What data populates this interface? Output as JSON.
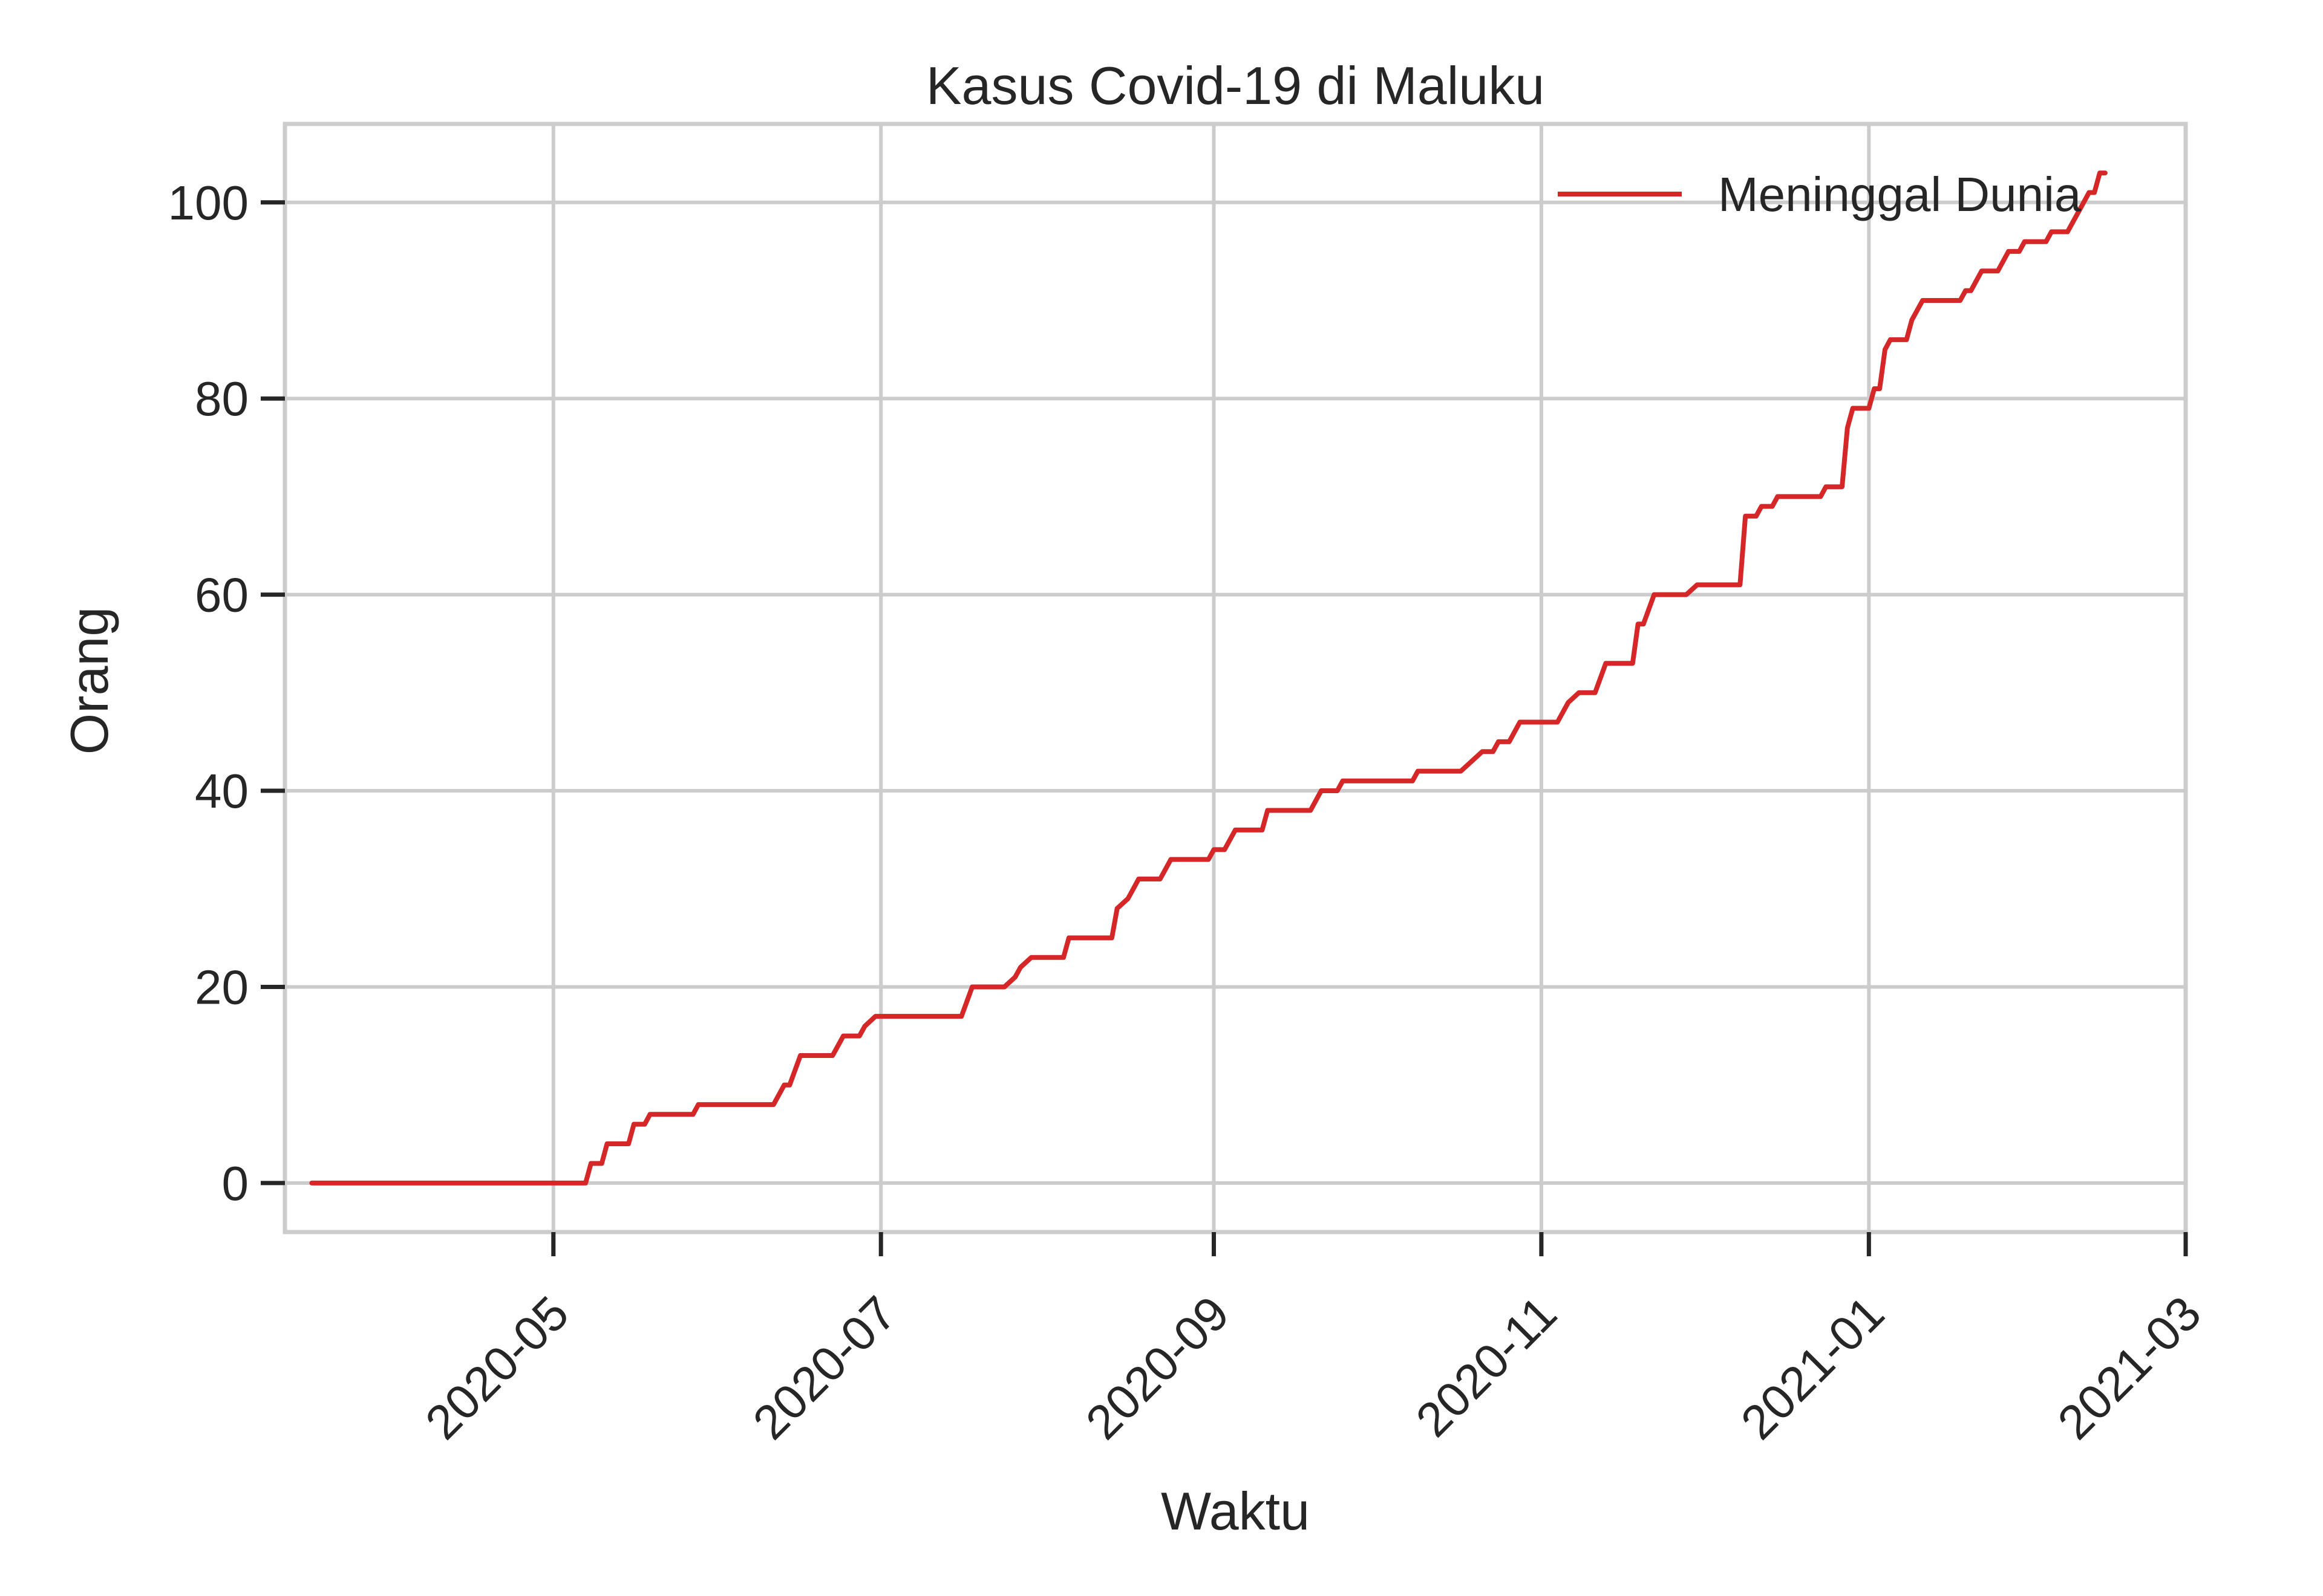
{
  "chart_data": {
    "type": "line",
    "title": "Kasus Covid-19 di Maluku",
    "xlabel": "Waktu",
    "ylabel": "Orang",
    "x_tick_labels": [
      "2020-05",
      "2020-07",
      "2020-09",
      "2020-11",
      "2021-01",
      "2021-03"
    ],
    "x_tick_dates": [
      "2020-05-01",
      "2020-07-01",
      "2020-09-01",
      "2020-11-01",
      "2021-01-01",
      "2021-03-01"
    ],
    "xlim": [
      "2020-03-12",
      "2021-03-01"
    ],
    "y_ticks": [
      0,
      20,
      40,
      60,
      80,
      100
    ],
    "y_tick_labels": [
      "0",
      "20",
      "40",
      "60",
      "80",
      "100"
    ],
    "ylim": [
      -5,
      108
    ],
    "grid": true,
    "legend_position": "top-right",
    "series": [
      {
        "name": "Meninggal Dunia",
        "color": "#d62728",
        "points": [
          [
            "2020-03-17",
            0
          ],
          [
            "2020-05-07",
            0
          ],
          [
            "2020-05-08",
            2
          ],
          [
            "2020-05-10",
            2
          ],
          [
            "2020-05-11",
            4
          ],
          [
            "2020-05-15",
            4
          ],
          [
            "2020-05-16",
            6
          ],
          [
            "2020-05-18",
            6
          ],
          [
            "2020-05-19",
            7
          ],
          [
            "2020-05-27",
            7
          ],
          [
            "2020-05-28",
            8
          ],
          [
            "2020-06-11",
            8
          ],
          [
            "2020-06-13",
            10
          ],
          [
            "2020-06-14",
            10
          ],
          [
            "2020-06-16",
            13
          ],
          [
            "2020-06-22",
            13
          ],
          [
            "2020-06-23",
            14
          ],
          [
            "2020-06-24",
            15
          ],
          [
            "2020-06-27",
            15
          ],
          [
            "2020-06-28",
            16
          ],
          [
            "2020-06-30",
            17
          ],
          [
            "2020-07-16",
            17
          ],
          [
            "2020-07-18",
            20
          ],
          [
            "2020-07-24",
            20
          ],
          [
            "2020-07-26",
            21
          ],
          [
            "2020-07-27",
            22
          ],
          [
            "2020-07-29",
            23
          ],
          [
            "2020-08-04",
            23
          ],
          [
            "2020-08-05",
            25
          ],
          [
            "2020-08-13",
            25
          ],
          [
            "2020-08-14",
            28
          ],
          [
            "2020-08-16",
            29
          ],
          [
            "2020-08-17",
            30
          ],
          [
            "2020-08-18",
            31
          ],
          [
            "2020-08-22",
            31
          ],
          [
            "2020-08-24",
            33
          ],
          [
            "2020-08-31",
            33
          ],
          [
            "2020-09-01",
            34
          ],
          [
            "2020-09-03",
            34
          ],
          [
            "2020-09-05",
            36
          ],
          [
            "2020-09-10",
            36
          ],
          [
            "2020-09-11",
            38
          ],
          [
            "2020-09-19",
            38
          ],
          [
            "2020-09-21",
            40
          ],
          [
            "2020-09-24",
            40
          ],
          [
            "2020-09-25",
            41
          ],
          [
            "2020-10-08",
            41
          ],
          [
            "2020-10-09",
            42
          ],
          [
            "2020-10-17",
            42
          ],
          [
            "2020-10-19",
            43
          ],
          [
            "2020-10-21",
            44
          ],
          [
            "2020-10-23",
            44
          ],
          [
            "2020-10-24",
            45
          ],
          [
            "2020-10-26",
            45
          ],
          [
            "2020-10-28",
            47
          ],
          [
            "2020-11-04",
            47
          ],
          [
            "2020-11-06",
            49
          ],
          [
            "2020-11-08",
            50
          ],
          [
            "2020-11-11",
            50
          ],
          [
            "2020-11-13",
            53
          ],
          [
            "2020-11-18",
            53
          ],
          [
            "2020-11-19",
            57
          ],
          [
            "2020-11-20",
            57
          ],
          [
            "2020-11-22",
            60
          ],
          [
            "2020-11-28",
            60
          ],
          [
            "2020-11-30",
            61
          ],
          [
            "2020-12-08",
            61
          ],
          [
            "2020-12-09",
            68
          ],
          [
            "2020-12-11",
            68
          ],
          [
            "2020-12-12",
            69
          ],
          [
            "2020-12-14",
            69
          ],
          [
            "2020-12-15",
            70
          ],
          [
            "2020-12-23",
            70
          ],
          [
            "2020-12-24",
            71
          ],
          [
            "2020-12-27",
            71
          ],
          [
            "2020-12-28",
            77
          ],
          [
            "2020-12-29",
            79
          ],
          [
            "2021-01-01",
            79
          ],
          [
            "2021-01-02",
            81
          ],
          [
            "2021-01-03",
            81
          ],
          [
            "2021-01-04",
            85
          ],
          [
            "2021-01-05",
            86
          ],
          [
            "2021-01-08",
            86
          ],
          [
            "2021-01-09",
            88
          ],
          [
            "2021-01-11",
            90
          ],
          [
            "2021-01-18",
            90
          ],
          [
            "2021-01-19",
            91
          ],
          [
            "2021-01-20",
            91
          ],
          [
            "2021-01-22",
            93
          ],
          [
            "2021-01-25",
            93
          ],
          [
            "2021-01-27",
            95
          ],
          [
            "2021-01-29",
            95
          ],
          [
            "2021-01-30",
            96
          ],
          [
            "2021-02-03",
            96
          ],
          [
            "2021-02-04",
            97
          ],
          [
            "2021-02-07",
            97
          ],
          [
            "2021-02-08",
            98
          ],
          [
            "2021-02-10",
            100
          ],
          [
            "2021-02-11",
            101
          ],
          [
            "2021-02-12",
            101
          ],
          [
            "2021-02-13",
            103
          ],
          [
            "2021-02-14",
            103
          ]
        ]
      }
    ]
  }
}
